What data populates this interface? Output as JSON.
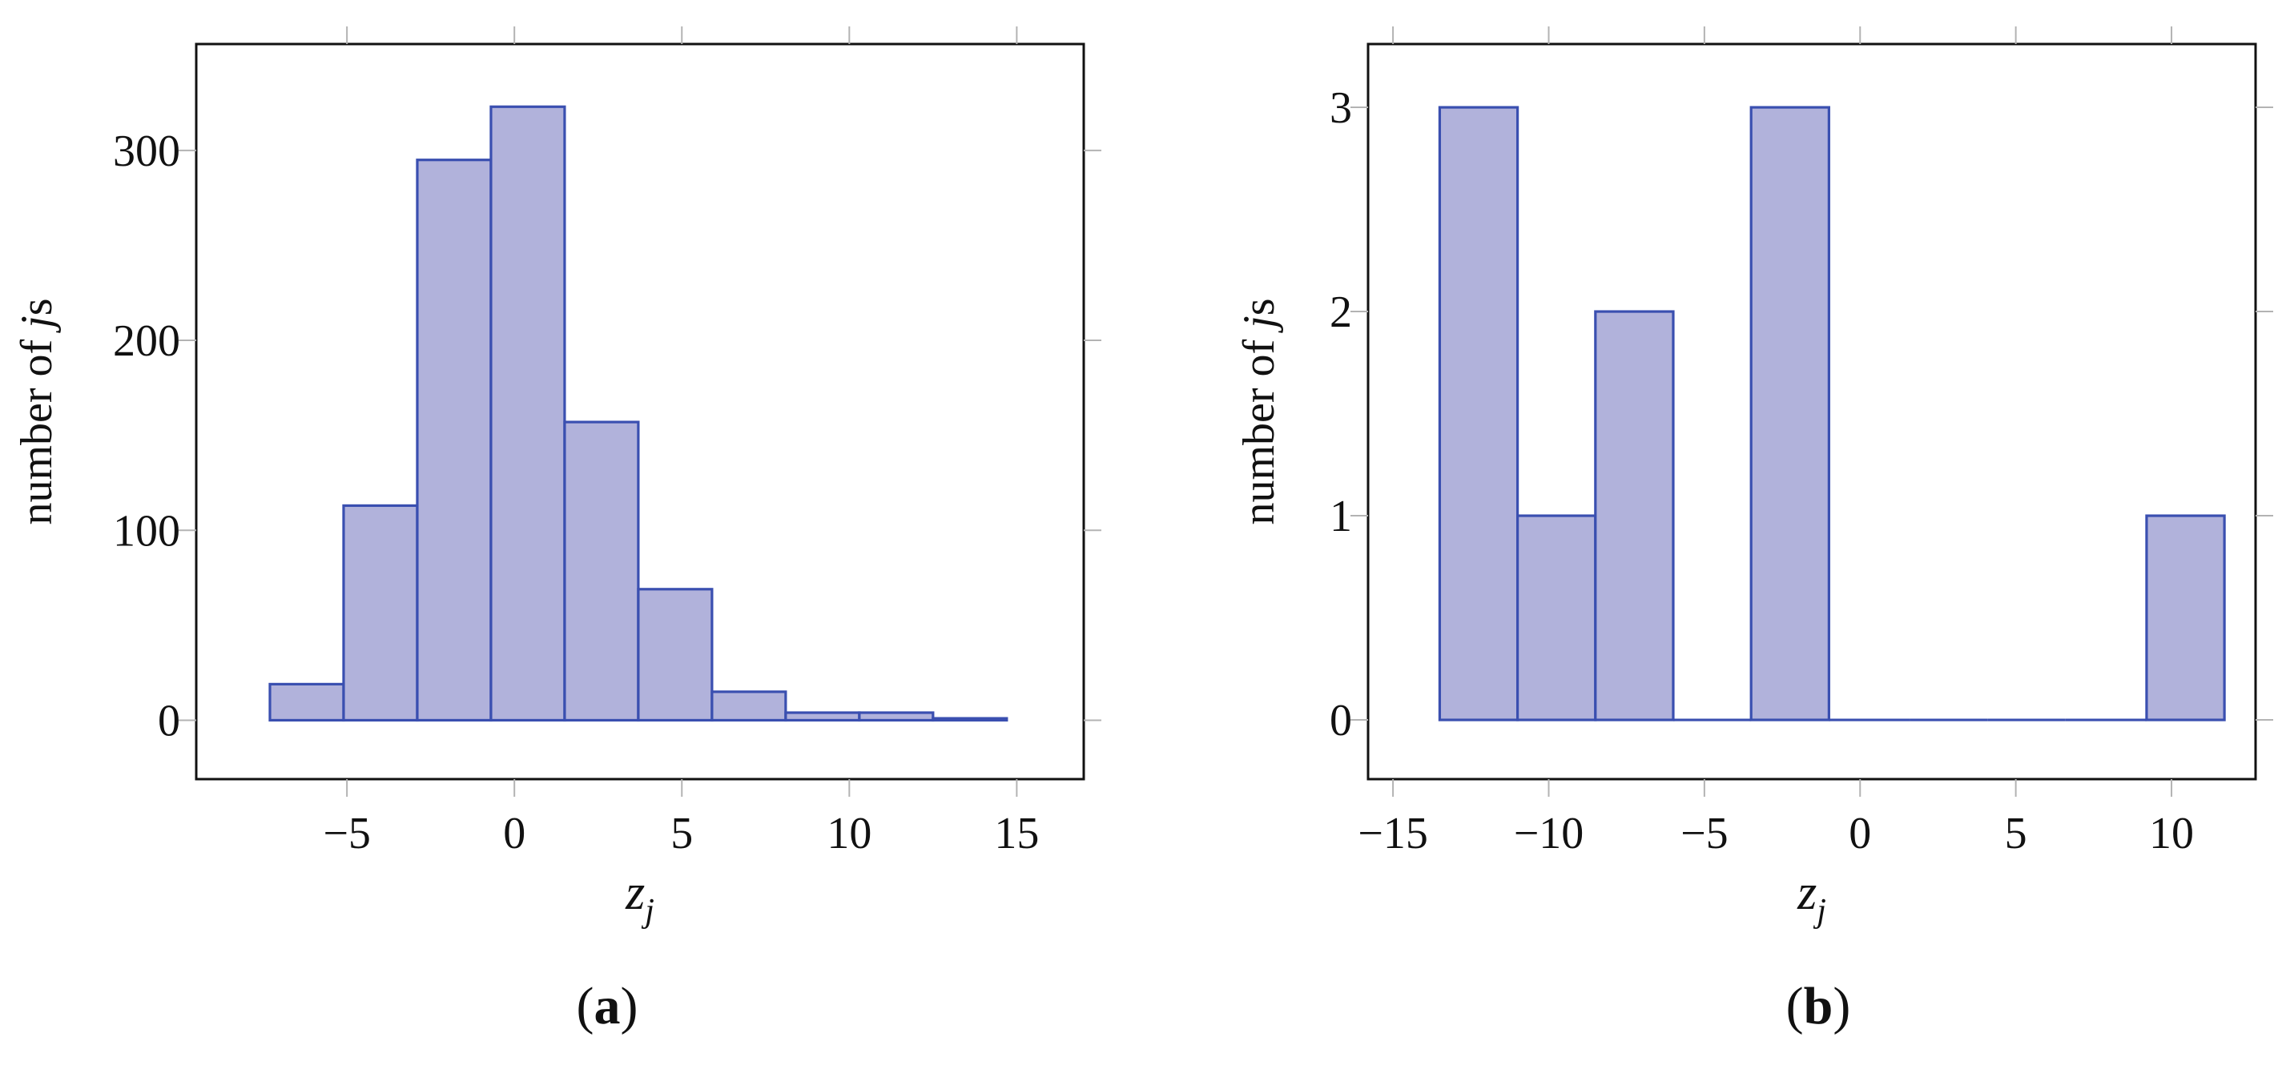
{
  "chart_data": [
    {
      "type": "bar",
      "panel": "a",
      "caption": {
        "open": "(",
        "letter": "a",
        "close": ")"
      },
      "xlabel": {
        "base": "z",
        "sub": "j"
      },
      "ylabel": {
        "prefix": "number of ",
        "italic": "j",
        "suffix": "s"
      },
      "xlim": [
        -9.5,
        17
      ],
      "ylim": [
        -31,
        356
      ],
      "xticks": [
        -5,
        0,
        5,
        10,
        15
      ],
      "xtick_labels": [
        "−5",
        "0",
        "5",
        "10",
        "15"
      ],
      "yticks": [
        0,
        100,
        200,
        300
      ],
      "ytick_labels": [
        "0",
        "100",
        "200",
        "300"
      ],
      "bins": [
        {
          "x0": -7.3,
          "x1": -5.1,
          "value": 19
        },
        {
          "x0": -5.1,
          "x1": -2.9,
          "value": 113
        },
        {
          "x0": -2.9,
          "x1": -0.7,
          "value": 295
        },
        {
          "x0": -0.7,
          "x1": 1.5,
          "value": 323
        },
        {
          "x0": 1.5,
          "x1": 3.7,
          "value": 157
        },
        {
          "x0": 3.7,
          "x1": 5.9,
          "value": 69
        },
        {
          "x0": 5.9,
          "x1": 8.1,
          "value": 15
        },
        {
          "x0": 8.1,
          "x1": 10.3,
          "value": 4
        },
        {
          "x0": 10.3,
          "x1": 12.5,
          "value": 4
        },
        {
          "x0": 12.5,
          "x1": 14.7,
          "value": 1
        }
      ]
    },
    {
      "type": "bar",
      "panel": "b",
      "caption": {
        "open": "(",
        "letter": "b",
        "close": ")"
      },
      "xlabel": {
        "base": "z",
        "sub": "j"
      },
      "ylabel": {
        "prefix": "number of ",
        "italic": "j",
        "suffix": "s"
      },
      "xlim": [
        -15.8,
        12.7
      ],
      "ylim": [
        -0.29,
        3.31
      ],
      "xticks": [
        -15,
        -10,
        -5,
        0,
        5,
        10
      ],
      "xtick_labels": [
        "−15",
        "−10",
        "−5",
        "0",
        "5",
        "10"
      ],
      "yticks": [
        0,
        1,
        2,
        3
      ],
      "ytick_labels": [
        "0",
        "1",
        "2",
        "3"
      ],
      "bins": [
        {
          "x0": -13.5,
          "x1": -11.0,
          "value": 3
        },
        {
          "x0": -11.0,
          "x1": -8.5,
          "value": 1
        },
        {
          "x0": -8.5,
          "x1": -6.0,
          "value": 2
        },
        {
          "x0": -6.0,
          "x1": -3.5,
          "value": 0
        },
        {
          "x0": -3.5,
          "x1": -1.0,
          "value": 3
        },
        {
          "x0": -1.0,
          "x1": 1.6,
          "value": 0
        },
        {
          "x0": 1.6,
          "x1": 4.1,
          "value": 0
        },
        {
          "x0": 4.1,
          "x1": 6.6,
          "value": 0
        },
        {
          "x0": 6.6,
          "x1": 9.2,
          "value": 0
        },
        {
          "x0": 9.2,
          "x1": 11.7,
          "value": 1
        }
      ]
    }
  ],
  "style": {
    "bar_fill": "#b1b2db",
    "bar_stroke": "#3a4fb0",
    "frame_stroke": "#111111",
    "tick_stroke": "#b3b3b3"
  }
}
